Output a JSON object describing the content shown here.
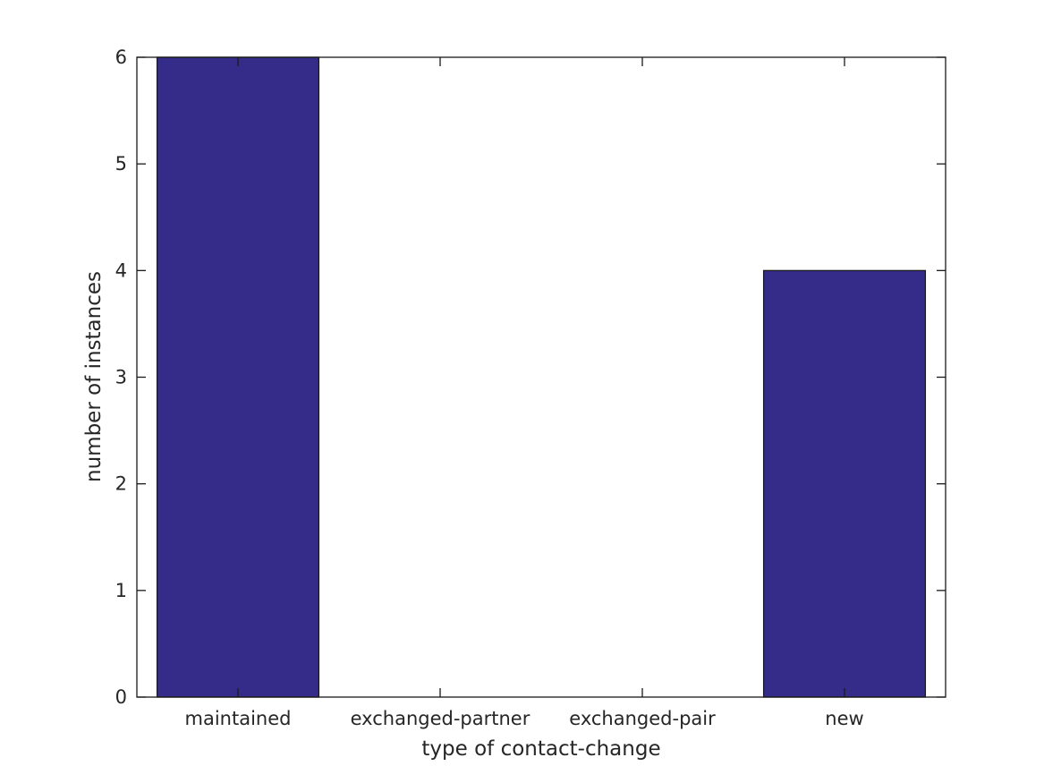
{
  "chart_data": {
    "type": "bar",
    "title": "",
    "categories": [
      "maintained",
      "exchanged-partner",
      "exchanged-pair",
      "new"
    ],
    "values": [
      6,
      0,
      0,
      4
    ],
    "xlabel": "type of contact-change",
    "ylabel": "number of instances",
    "ylim": [
      0,
      6
    ],
    "yticks": [
      0,
      1,
      2,
      3,
      4,
      5,
      6
    ],
    "bar_width_fraction": 0.8,
    "bar_color": "#352c89",
    "bar_edge_color": "#1a1a1a",
    "axis_color": "#1a1a1a",
    "text_color": "#262626",
    "background": "#ffffff",
    "grid": false,
    "legend_position": "none",
    "tick_direction": "in",
    "box": true
  }
}
